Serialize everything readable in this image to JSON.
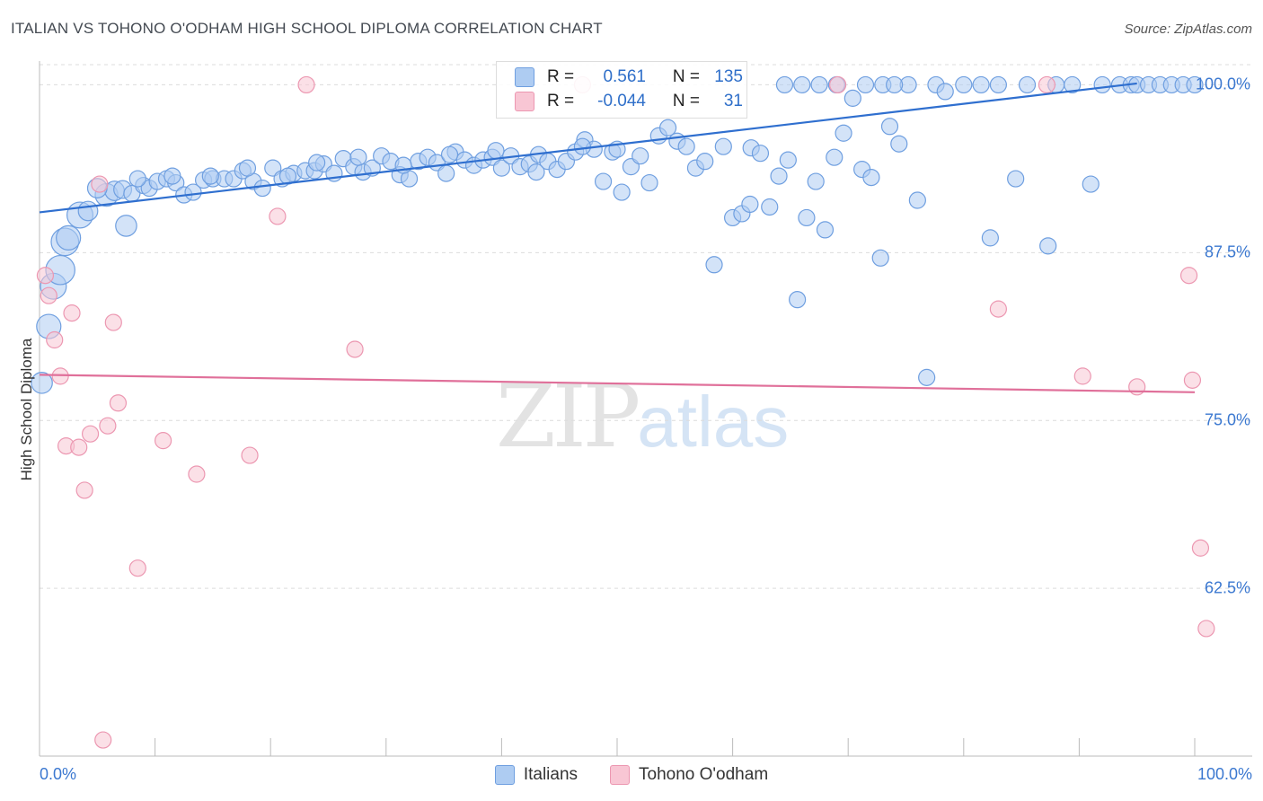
{
  "header": {
    "title": "ITALIAN VS TOHONO O'ODHAM HIGH SCHOOL DIPLOMA CORRELATION CHART",
    "source": "Source: ZipAtlas.com"
  },
  "watermark": {
    "zip": "ZIP",
    "atlas": "atlas"
  },
  "legend": {
    "rows": [
      {
        "r_label": "R =",
        "r_value": "0.561",
        "n_label": "N =",
        "n_value": "135"
      },
      {
        "r_label": "R =",
        "r_value": "-0.044",
        "n_label": "N =",
        "n_value": "31"
      }
    ]
  },
  "colors": {
    "blue_fill": "#aeccf2",
    "blue_stroke": "#6f9fe0",
    "blue_line": "#2f6fcf",
    "pink_fill": "#f8c6d4",
    "pink_stroke": "#ec97b1",
    "pink_line": "#e0709a",
    "axis_text": "#3b78d0"
  },
  "chart_data": {
    "type": "scatter",
    "title": "ITALIAN VS TOHONO O'ODHAM HIGH SCHOOL DIPLOMA CORRELATION CHART",
    "xlabel": "",
    "ylabel": "High School Diploma",
    "xlim": [
      0,
      100
    ],
    "ylim": [
      50,
      101.5
    ],
    "x_tick_labels": [
      "0.0%",
      "100.0%"
    ],
    "y_ticks": [
      {
        "value": 62.5,
        "label": "62.5%"
      },
      {
        "value": 75.0,
        "label": "75.0%"
      },
      {
        "value": 87.5,
        "label": "87.5%"
      },
      {
        "value": 100.0,
        "label": "100.0%"
      }
    ],
    "grid": "horizontal dashed",
    "series": [
      {
        "name": "Italians",
        "color": "#aeccf2",
        "trend": {
          "x": [
            0,
            95
          ],
          "y": [
            90.5,
            100.1
          ]
        },
        "points": [
          [
            0.2,
            77.8,
            1.3
          ],
          [
            0.8,
            82.0,
            1.5
          ],
          [
            1.2,
            85.0,
            1.6
          ],
          [
            1.8,
            86.2,
            1.8
          ],
          [
            2.2,
            88.3,
            1.7
          ],
          [
            2.5,
            88.6,
            1.5
          ],
          [
            3.5,
            90.3,
            1.6
          ],
          [
            4.2,
            90.6,
            1.2
          ],
          [
            5.8,
            91.8,
            1.4
          ],
          [
            6.5,
            92.1,
            1.2
          ],
          [
            7.2,
            92.2,
            1.1
          ],
          [
            8.0,
            91.9,
            1.0
          ],
          [
            9.0,
            92.5,
            1.0
          ],
          [
            9.5,
            92.3,
            1.0
          ],
          [
            10.2,
            92.8,
            1.0
          ],
          [
            11.0,
            93.0,
            1.0
          ],
          [
            11.8,
            92.7,
            1.0
          ],
          [
            12.5,
            91.8,
            1.0
          ],
          [
            13.3,
            92.0,
            1.0
          ],
          [
            14.2,
            92.9,
            1.0
          ],
          [
            15.0,
            93.0,
            1.0
          ],
          [
            16.0,
            93.0,
            1.0
          ],
          [
            16.8,
            93.0,
            1.0
          ],
          [
            17.6,
            93.6,
            1.0
          ],
          [
            18.5,
            92.8,
            1.0
          ],
          [
            19.3,
            92.3,
            1.0
          ],
          [
            20.2,
            93.8,
            1.0
          ],
          [
            21.0,
            93.0,
            1.0
          ],
          [
            22.0,
            93.4,
            1.0
          ],
          [
            23.0,
            93.6,
            1.0
          ],
          [
            23.8,
            93.6,
            1.0
          ],
          [
            24.6,
            94.1,
            1.0
          ],
          [
            25.5,
            93.4,
            1.0
          ],
          [
            26.3,
            94.5,
            1.0
          ],
          [
            27.2,
            93.9,
            1.0
          ],
          [
            28.0,
            93.5,
            1.0
          ],
          [
            28.8,
            93.8,
            1.0
          ],
          [
            29.6,
            94.7,
            1.0
          ],
          [
            30.4,
            94.3,
            1.0
          ],
          [
            31.2,
            93.3,
            1.0
          ],
          [
            32.0,
            93.0,
            1.0
          ],
          [
            32.8,
            94.3,
            1.0
          ],
          [
            33.6,
            94.6,
            1.0
          ],
          [
            34.4,
            94.2,
            1.0
          ],
          [
            35.2,
            93.4,
            1.0
          ],
          [
            36.0,
            95.0,
            1.0
          ],
          [
            36.8,
            94.4,
            1.0
          ],
          [
            37.6,
            94.0,
            1.0
          ],
          [
            38.4,
            94.4,
            1.0
          ],
          [
            39.2,
            94.6,
            1.0
          ],
          [
            40.0,
            93.8,
            1.0
          ],
          [
            40.8,
            94.7,
            1.0
          ],
          [
            41.6,
            93.9,
            1.0
          ],
          [
            42.4,
            94.1,
            1.0
          ],
          [
            43.2,
            94.8,
            1.0
          ],
          [
            44.0,
            94.3,
            1.0
          ],
          [
            44.8,
            93.7,
            1.0
          ],
          [
            45.6,
            94.3,
            1.0
          ],
          [
            46.4,
            95.0,
            1.0
          ],
          [
            47.2,
            95.9,
            1.0
          ],
          [
            48.0,
            95.2,
            1.0
          ],
          [
            48.8,
            92.8,
            1.0
          ],
          [
            49.6,
            95.0,
            1.0
          ],
          [
            50.4,
            92.0,
            1.0
          ],
          [
            51.2,
            93.9,
            1.0
          ],
          [
            52.0,
            94.7,
            1.0
          ],
          [
            52.8,
            92.7,
            1.0
          ],
          [
            53.6,
            96.2,
            1.0
          ],
          [
            54.4,
            96.8,
            1.0
          ],
          [
            55.2,
            95.8,
            1.0
          ],
          [
            56.0,
            95.4,
            1.0
          ],
          [
            56.8,
            93.8,
            1.0
          ],
          [
            57.6,
            94.3,
            1.0
          ],
          [
            58.4,
            86.6,
            1.0
          ],
          [
            59.2,
            95.4,
            1.0
          ],
          [
            60.0,
            90.1,
            1.0
          ],
          [
            60.8,
            90.4,
            1.0
          ],
          [
            61.6,
            95.3,
            1.0
          ],
          [
            62.4,
            94.9,
            1.0
          ],
          [
            63.2,
            90.9,
            1.0
          ],
          [
            64.0,
            93.2,
            1.0
          ],
          [
            64.8,
            94.4,
            1.0
          ],
          [
            65.6,
            84.0,
            1.0
          ],
          [
            66.4,
            90.1,
            1.0
          ],
          [
            67.2,
            92.8,
            1.0
          ],
          [
            68.0,
            89.2,
            1.0
          ],
          [
            68.8,
            94.6,
            1.0
          ],
          [
            69.6,
            96.4,
            1.0
          ],
          [
            70.4,
            99.0,
            1.0
          ],
          [
            71.2,
            93.7,
            1.0
          ],
          [
            72.0,
            93.1,
            1.0
          ],
          [
            72.8,
            87.1,
            1.0
          ],
          [
            73.6,
            96.9,
            1.0
          ],
          [
            74.4,
            95.6,
            1.0
          ],
          [
            75.2,
            100.0,
            1.0
          ],
          [
            76.0,
            91.4,
            1.0
          ],
          [
            76.8,
            78.2,
            1.0
          ],
          [
            77.6,
            100.0,
            1.0
          ],
          [
            78.4,
            99.5,
            1.0
          ],
          [
            80.0,
            100.0,
            1.0
          ],
          [
            81.5,
            100.0,
            1.0
          ],
          [
            82.3,
            88.6,
            1.0
          ],
          [
            83.0,
            100.0,
            1.0
          ],
          [
            84.5,
            93.0,
            1.0
          ],
          [
            85.5,
            100.0,
            1.0
          ],
          [
            87.3,
            88.0,
            1.0
          ],
          [
            88.0,
            100.0,
            1.0
          ],
          [
            89.4,
            100.0,
            1.0
          ],
          [
            91.0,
            92.6,
            1.0
          ],
          [
            92.0,
            100.0,
            1.0
          ],
          [
            93.5,
            100.0,
            1.0
          ],
          [
            94.5,
            100.0,
            1.0
          ],
          [
            95.0,
            100.0,
            1.0
          ],
          [
            96.0,
            100.0,
            1.0
          ],
          [
            97.0,
            100.0,
            1.0
          ],
          [
            98.0,
            100.0,
            1.0
          ],
          [
            99.0,
            100.0,
            1.0
          ],
          [
            100.0,
            100.0,
            1.0
          ],
          [
            61.5,
            91.1,
            1.0
          ],
          [
            64.5,
            100.0,
            1.0
          ],
          [
            66.0,
            100.0,
            1.0
          ],
          [
            67.5,
            100.0,
            1.0
          ],
          [
            69.0,
            100.0,
            1.0
          ],
          [
            71.5,
            100.0,
            1.0
          ],
          [
            73.0,
            100.0,
            1.0
          ],
          [
            74.0,
            100.0,
            1.0
          ],
          [
            50.0,
            95.2,
            1.0
          ],
          [
            47.0,
            95.4,
            1.0
          ],
          [
            43.0,
            93.5,
            1.0
          ],
          [
            39.5,
            95.1,
            1.0
          ],
          [
            35.5,
            94.8,
            1.0
          ],
          [
            31.5,
            94.0,
            1.0
          ],
          [
            27.6,
            94.6,
            1.0
          ],
          [
            24.0,
            94.2,
            1.0
          ],
          [
            21.5,
            93.2,
            1.0
          ],
          [
            18.0,
            93.8,
            1.0
          ],
          [
            14.8,
            93.2,
            1.0
          ],
          [
            11.5,
            93.2,
            1.0
          ],
          [
            8.5,
            93.0,
            1.0
          ],
          [
            7.5,
            89.5,
            1.3
          ],
          [
            5.0,
            92.3,
            1.2
          ]
        ]
      },
      {
        "name": "Tohono O'odham",
        "color": "#f8c6d4",
        "trend": {
          "x": [
            0,
            100
          ],
          "y": [
            78.4,
            77.1
          ]
        },
        "points": [
          [
            0.5,
            85.8,
            1.0
          ],
          [
            0.8,
            84.3,
            1.0
          ],
          [
            1.3,
            81.0,
            1.0
          ],
          [
            1.8,
            78.3,
            1.0
          ],
          [
            2.3,
            73.1,
            1.0
          ],
          [
            2.8,
            83.0,
            1.0
          ],
          [
            3.4,
            73.0,
            1.0
          ],
          [
            3.9,
            69.8,
            1.0
          ],
          [
            4.4,
            74.0,
            1.0
          ],
          [
            5.2,
            92.6,
            1.0
          ],
          [
            5.5,
            51.2,
            1.0
          ],
          [
            5.9,
            74.6,
            1.0
          ],
          [
            6.4,
            82.3,
            1.0
          ],
          [
            6.8,
            76.3,
            1.0
          ],
          [
            8.5,
            64.0,
            1.0
          ],
          [
            10.7,
            73.5,
            1.0
          ],
          [
            13.6,
            71.0,
            1.0
          ],
          [
            18.2,
            72.4,
            1.0
          ],
          [
            20.6,
            90.2,
            1.0
          ],
          [
            23.1,
            100.0,
            1.0
          ],
          [
            27.3,
            80.3,
            1.0
          ],
          [
            47.0,
            100.0,
            1.0
          ],
          [
            69.1,
            100.0,
            1.0
          ],
          [
            83.0,
            83.3,
            1.0
          ],
          [
            87.2,
            100.0,
            1.0
          ],
          [
            90.3,
            78.3,
            1.0
          ],
          [
            95.0,
            77.5,
            1.0
          ],
          [
            99.5,
            85.8,
            1.0
          ],
          [
            99.8,
            78.0,
            1.0
          ],
          [
            100.5,
            65.5,
            1.0
          ],
          [
            101.0,
            59.5,
            1.0
          ]
        ]
      }
    ]
  }
}
